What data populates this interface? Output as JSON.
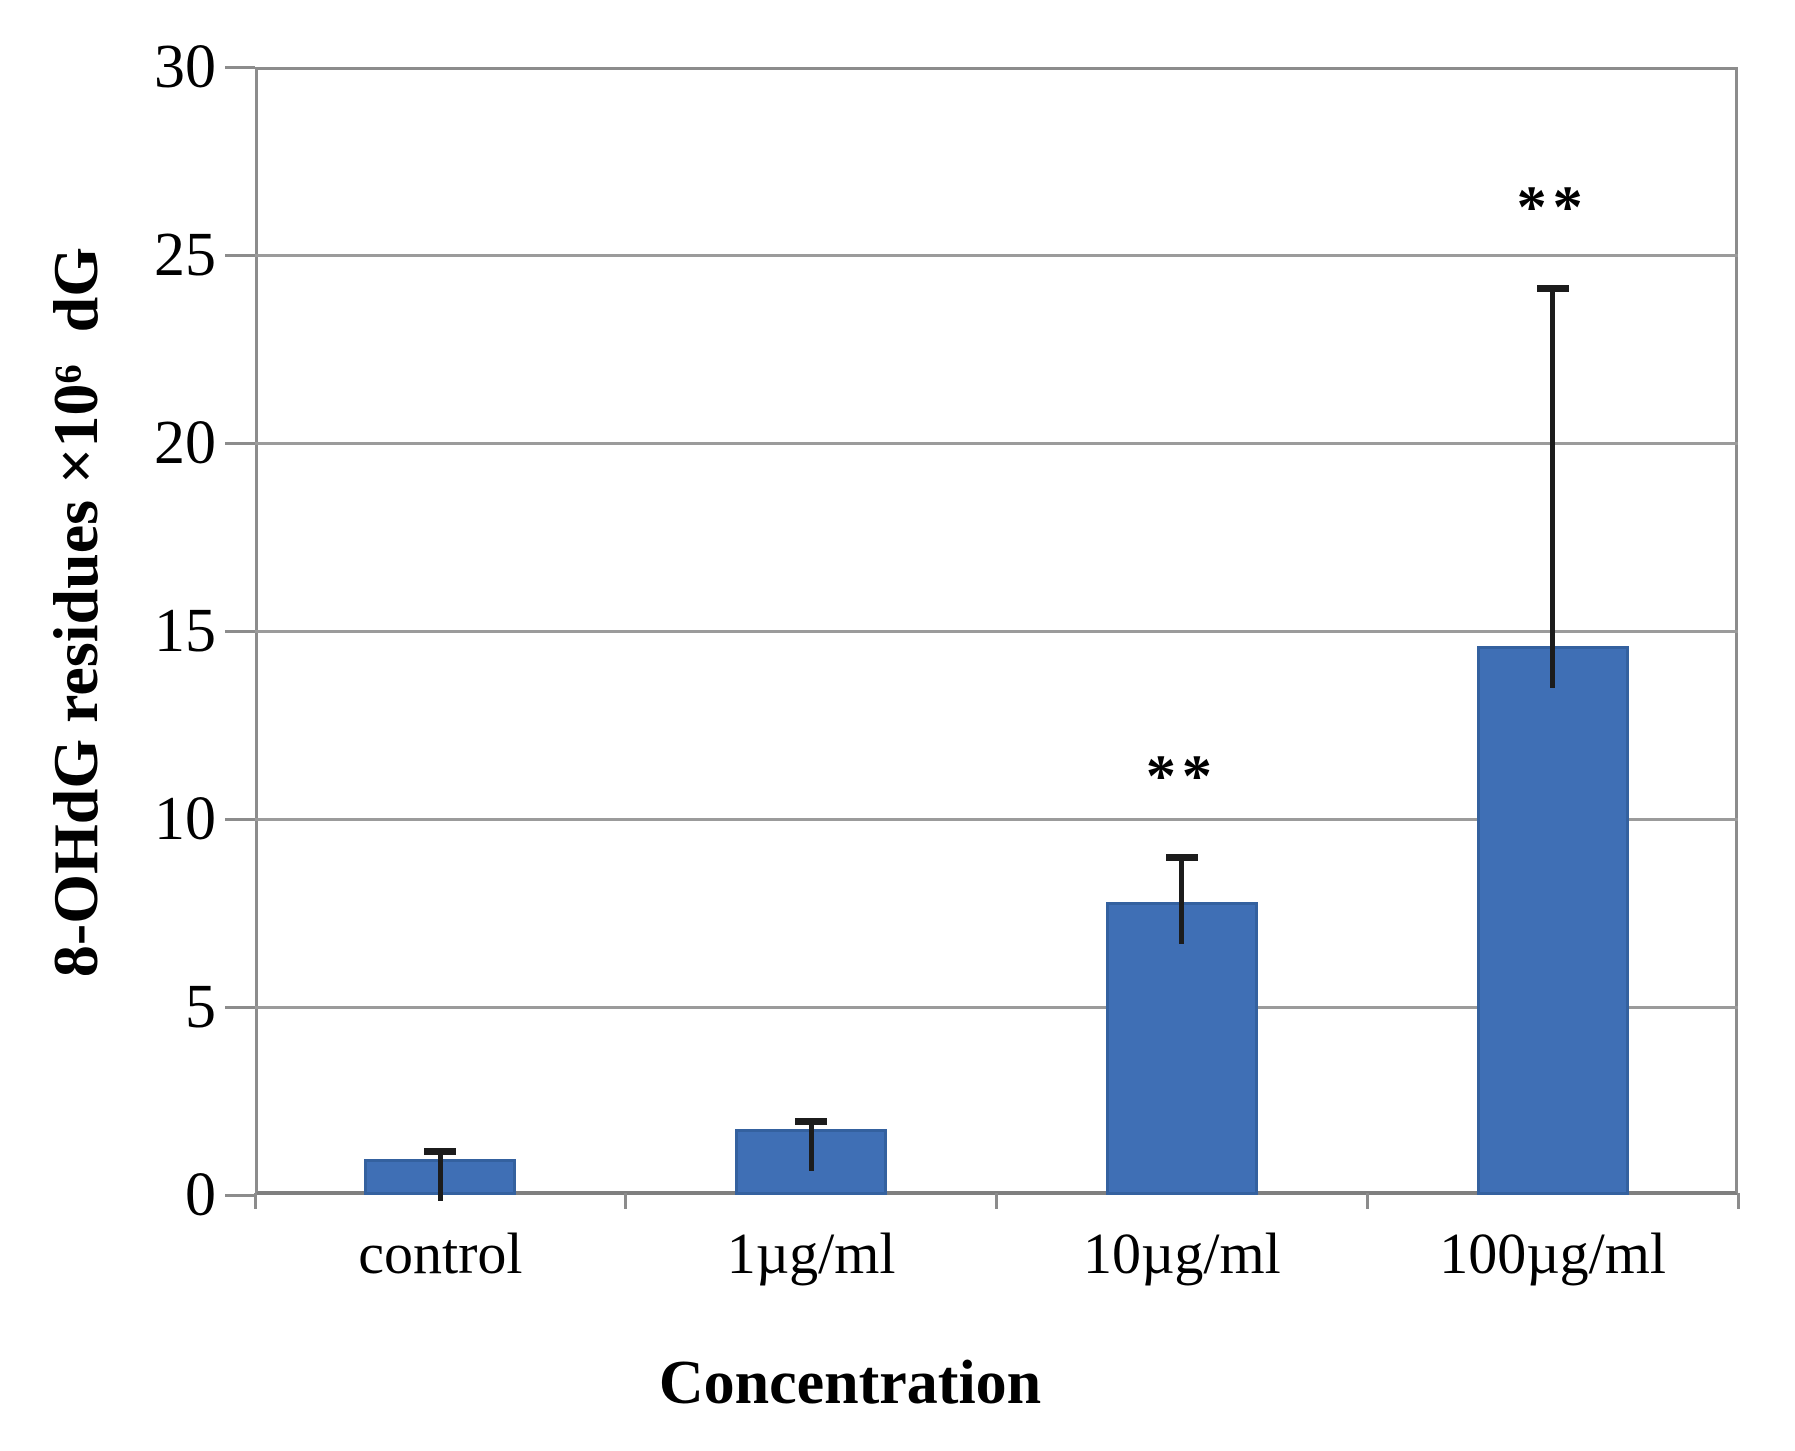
{
  "chart_data": {
    "type": "bar",
    "title": "",
    "categories": [
      "control",
      "1µg/ml",
      "10µg/ml",
      "100µg/ml"
    ],
    "values": [
      0.95,
      1.75,
      7.8,
      14.6
    ],
    "errors_plus": [
      0.2,
      0.2,
      1.15,
      9.5
    ],
    "significance": [
      "",
      "",
      "**",
      "**"
    ],
    "xlabel": "Concentration",
    "ylabel": "8-OHdG residues ×10⁶  dG",
    "ylim": [
      0,
      30
    ],
    "yticks": [
      0,
      5,
      10,
      15,
      20,
      25,
      30
    ],
    "grid": "horizontal-major",
    "legend_position": "none",
    "bar_color": "#3f6fb5",
    "bar_edge_color": "#34619f",
    "gridline_color": "#9b9b9b",
    "axis_color": "#8c8c8c",
    "error_bar_color": "#1c1c1c",
    "text_color": "#000000"
  }
}
